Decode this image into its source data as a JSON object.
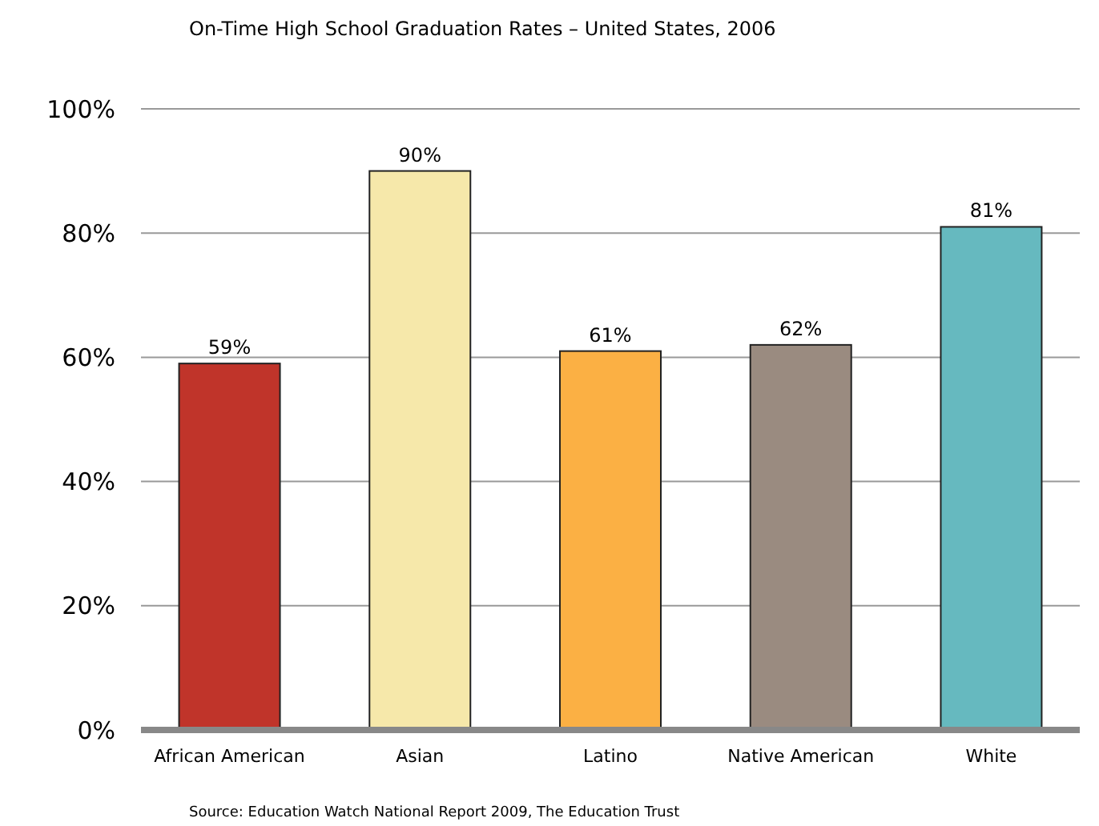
{
  "chart_data": {
    "type": "bar",
    "title": "On-Time High School Graduation Rates – United States, 2006",
    "categories": [
      "African American",
      "Asian",
      "Latino",
      "Native American",
      "White"
    ],
    "values": [
      59,
      90,
      61,
      62,
      81
    ],
    "colors": [
      "#c0342a",
      "#f6e8aa",
      "#fbb044",
      "#9a8b80",
      "#66b9bf"
    ],
    "value_labels": [
      "59%",
      "90%",
      "61%",
      "62%",
      "81%"
    ],
    "ylim": [
      0,
      100
    ],
    "yticks": [
      {
        "value": 0,
        "label": "0%"
      },
      {
        "value": 20,
        "label": "20%"
      },
      {
        "value": 40,
        "label": "40%"
      },
      {
        "value": 60,
        "label": "60%"
      },
      {
        "value": 80,
        "label": "80%"
      },
      {
        "value": 100,
        "label": "100%"
      }
    ],
    "grid": "y",
    "annotations": [
      "Source: Education Watch National Report 2009, The Education Trust"
    ]
  }
}
